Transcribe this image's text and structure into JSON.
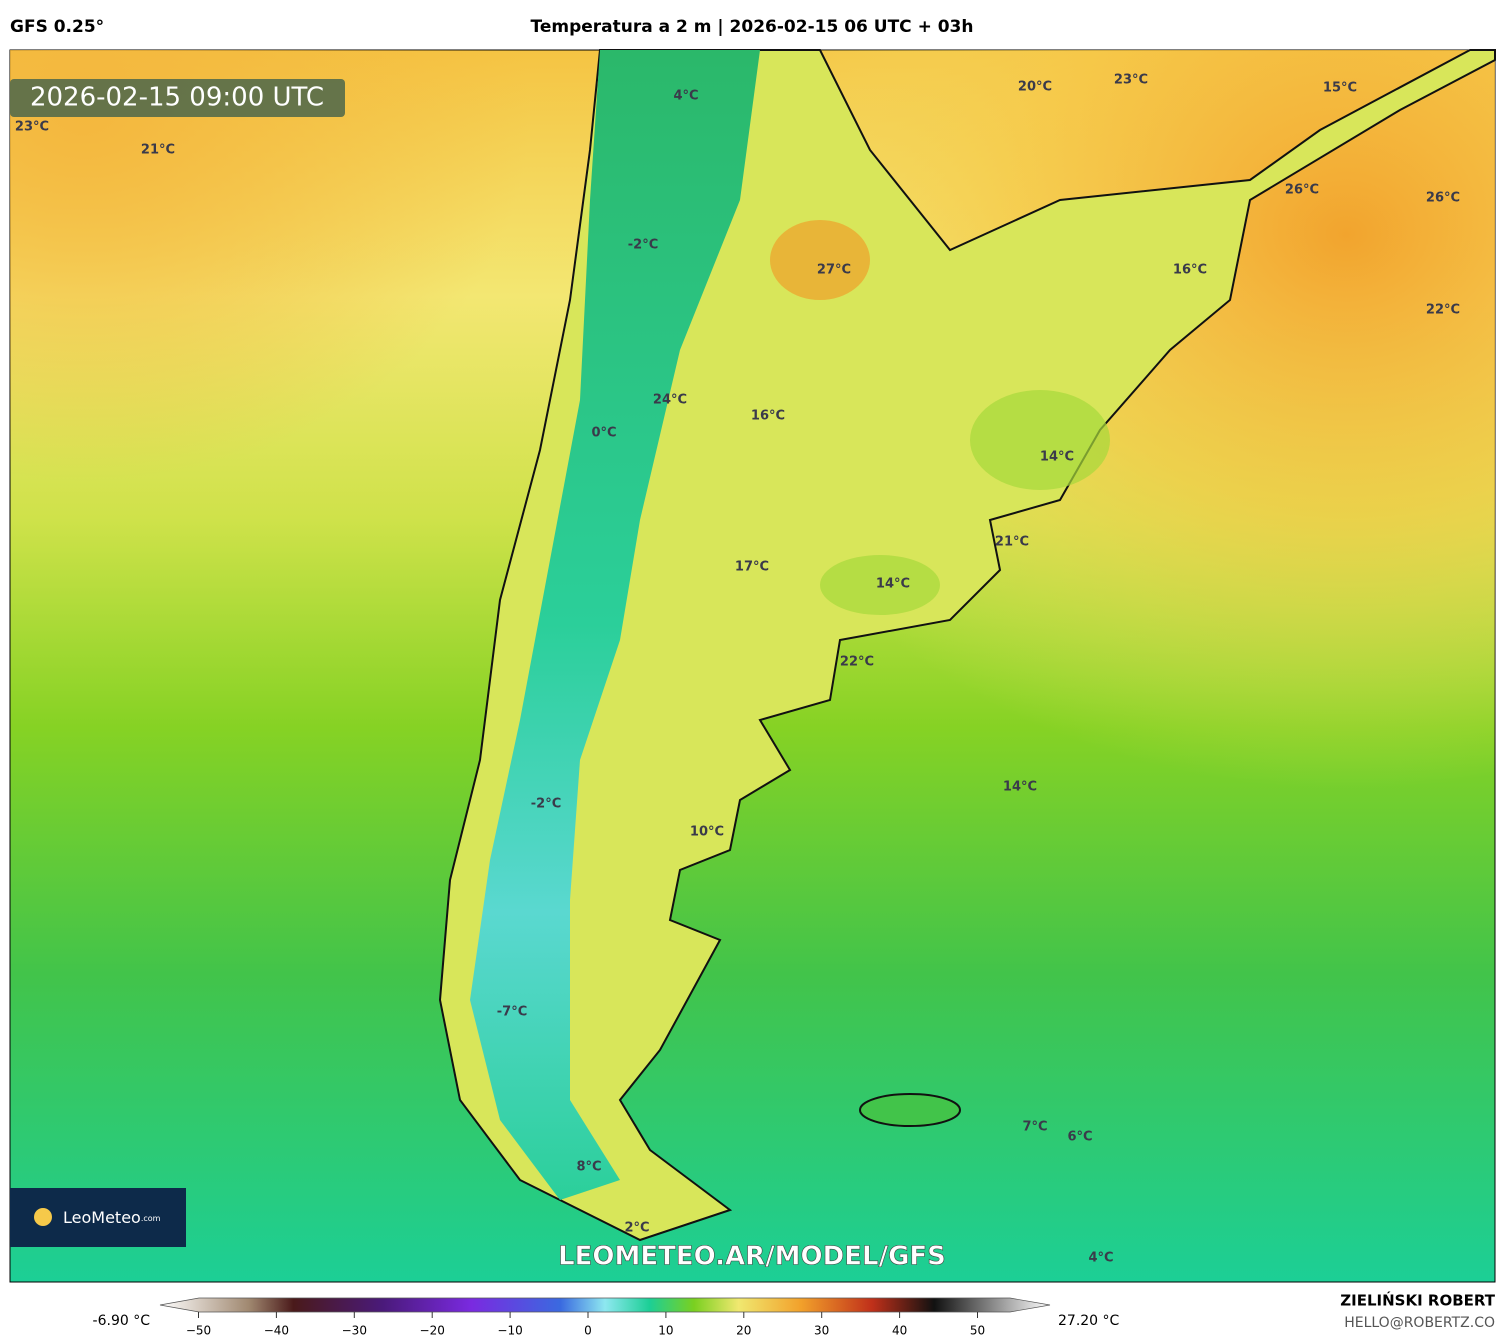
{
  "header": {
    "model": "GFS 0.25°",
    "title": "Temperatura a 2 m | 2026-02-15 06 UTC + 03h"
  },
  "map": {
    "timestamp": "2026-02-15 09:00 UTC",
    "labels": [
      "23°C",
      "21°C",
      "4°C",
      "20°C",
      "23°C",
      "15°C",
      "26°C",
      "26°C",
      "-2°C",
      "27°C",
      "16°C",
      "22°C",
      "24°C",
      "16°C",
      "0°C",
      "14°C",
      "21°C",
      "17°C",
      "14°C",
      "22°C",
      "14°C",
      "-2°C",
      "10°C",
      "-7°C",
      "7°C",
      "6°C",
      "8°C",
      "2°C",
      "4°C"
    ],
    "logo": "LeoMeteo",
    "logo_suffix": ".com",
    "watermark": "LEOMETEO.AR/MODEL/GFS"
  },
  "colorbar": {
    "min_label": "-6.90 °C",
    "max_label": "27.20 °C",
    "ticks": [
      {
        "value": -50,
        "label": "−50"
      },
      {
        "value": -40,
        "label": "−40"
      },
      {
        "value": -30,
        "label": "−30"
      },
      {
        "value": -20,
        "label": "−20"
      },
      {
        "value": -10,
        "label": "−10"
      },
      0,
      10,
      20,
      30,
      40,
      50
    ]
  },
  "footer": {
    "author": "ZIELIŃSKI ROBERT",
    "email": "HELLO@ROBERTZ.CO"
  }
}
